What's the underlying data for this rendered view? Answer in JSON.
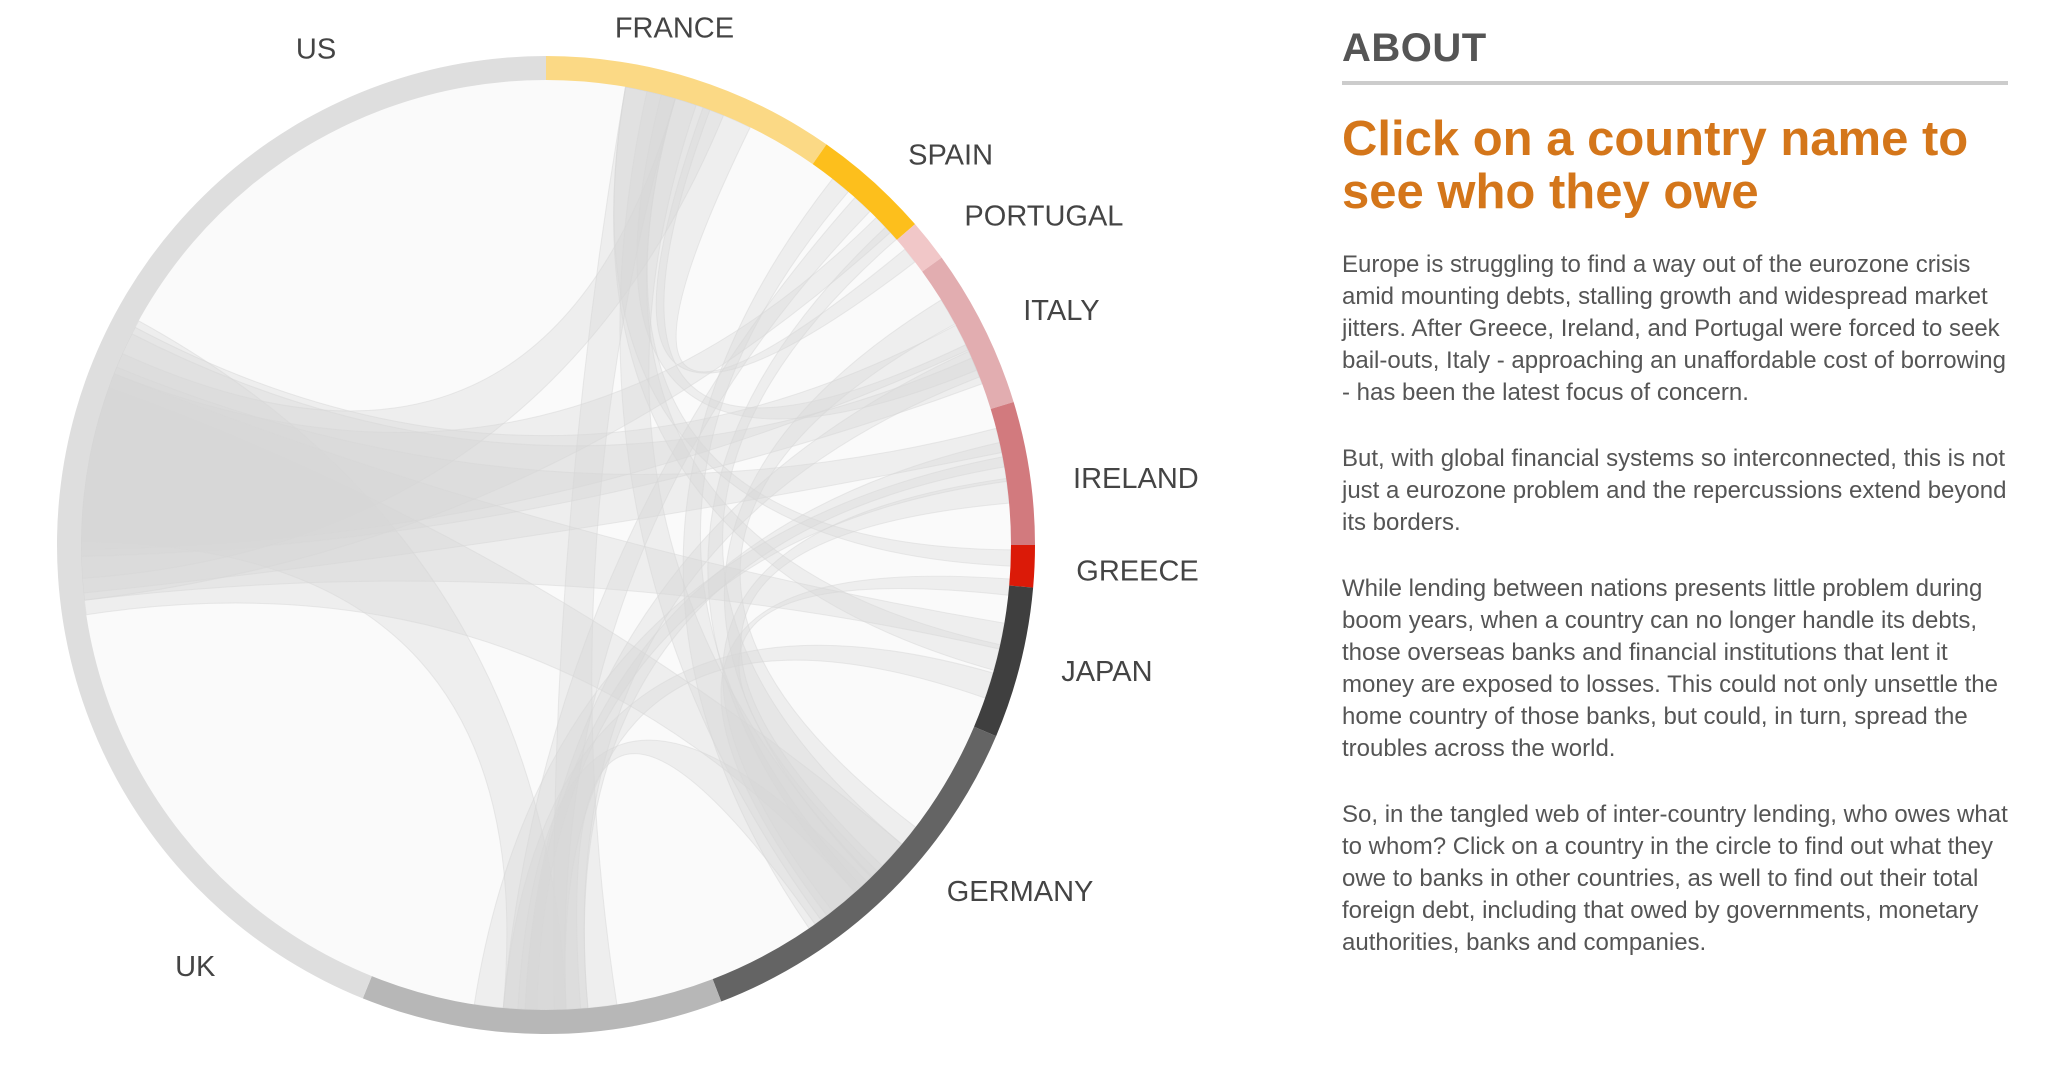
{
  "diagram": {
    "type": "chord",
    "countries": [
      {
        "name": "FRANCE",
        "color": "#fbd985"
      },
      {
        "name": "SPAIN",
        "color": "#fdbf1c"
      },
      {
        "name": "PORTUGAL",
        "color": "#f1c7c8"
      },
      {
        "name": "ITALY",
        "color": "#e2adb0"
      },
      {
        "name": "IRELAND",
        "color": "#d27a7e"
      },
      {
        "name": "GREECE",
        "color": "#db1a08"
      },
      {
        "name": "JAPAN",
        "color": "#3f3f3f"
      },
      {
        "name": "GERMANY",
        "color": "#646464"
      },
      {
        "name": "UK",
        "color": "#b7b7b7"
      },
      {
        "name": "US",
        "color": "#dedede"
      }
    ],
    "ribbon_color": "#d7d7d7"
  },
  "about": {
    "heading": "ABOUT",
    "title": "Click on a country name to see who they owe",
    "paragraphs": [
      "Europe is struggling to find a way out of the eurozone crisis amid mounting debts, stalling growth and widespread market jitters. After Greece, Ireland, and Portugal were forced to seek bail-outs, Italy - approaching an unaffordable cost of borrowing - has been the latest focus of concern.",
      "But, with global financial systems so interconnected, this is not just a eurozone problem and the repercussions extend beyond its borders.",
      "While lending between nations presents little problem during boom years, when a country can no longer handle its debts, those overseas banks and financial institutions that lent it money are exposed to losses. This could not only unsettle the home country of those banks, but could, in turn, spread the troubles across the world.",
      "So, in the tangled web of inter-country lending, who owes what to whom? Click on a country in the circle to find out what they owe to banks in other countries, as well to find out their total foreign debt, including that owed by governments, monetary authorities, banks and companies."
    ]
  }
}
